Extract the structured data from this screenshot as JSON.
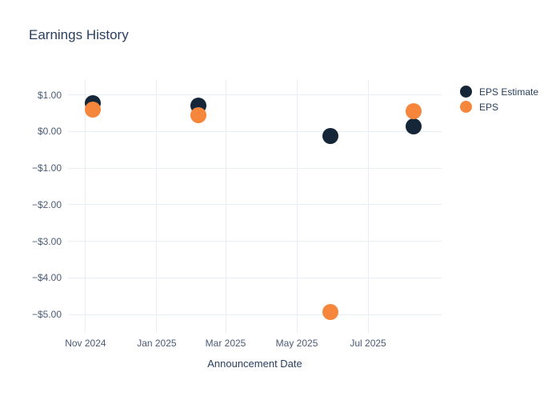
{
  "chart_data": {
    "type": "scatter",
    "title": "Earnings History",
    "xlabel": "Announcement Date",
    "ylabel": "",
    "grid": true,
    "legend_position": "top-right",
    "x_type": "date",
    "xlim": [
      "2024-10-17",
      "2025-09-02"
    ],
    "ylim": [
      -5.5,
      1.41
    ],
    "xticks": [
      {
        "date": "2024-11-01",
        "label": "Nov 2024"
      },
      {
        "date": "2025-01-01",
        "label": "Jan 2025"
      },
      {
        "date": "2025-03-01",
        "label": "Mar 2025"
      },
      {
        "date": "2025-05-01",
        "label": "May 2025"
      },
      {
        "date": "2025-07-01",
        "label": "Jul 2025"
      }
    ],
    "yticks": [
      {
        "value": 1,
        "label": "$1.00"
      },
      {
        "value": 0,
        "label": "$0.00"
      },
      {
        "value": -1,
        "label": "−$1.00"
      },
      {
        "value": -2,
        "label": "−$2.00"
      },
      {
        "value": -3,
        "label": "−$3.00"
      },
      {
        "value": -4,
        "label": "−$4.00"
      },
      {
        "value": -5,
        "label": "−$5.00"
      }
    ],
    "series": [
      {
        "name": "EPS Estimate",
        "color": "#162639",
        "marker": "circle",
        "points": [
          {
            "date": "2024-11-07",
            "value": 0.77
          },
          {
            "date": "2025-02-06",
            "value": 0.71
          },
          {
            "date": "2025-05-30",
            "value": -0.13
          },
          {
            "date": "2025-08-09",
            "value": 0.14
          }
        ]
      },
      {
        "name": "EPS",
        "color": "#f5863c",
        "marker": "circle",
        "points": [
          {
            "date": "2024-11-07",
            "value": 0.6
          },
          {
            "date": "2025-02-06",
            "value": 0.44
          },
          {
            "date": "2025-05-30",
            "value": -4.93
          },
          {
            "date": "2025-08-09",
            "value": 0.55
          }
        ]
      }
    ],
    "colors": {
      "background": "#ffffff",
      "grid": "#e8eef7",
      "title_text": "#2a3f5f",
      "tick_text": "#4a5b74",
      "eps_estimate": "#162639",
      "eps": "#f5863c"
    }
  }
}
